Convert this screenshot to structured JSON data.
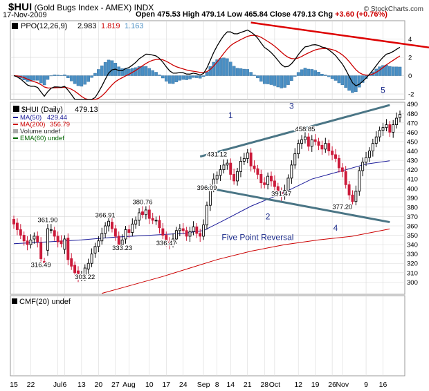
{
  "header": {
    "symbol": "$HUI",
    "name": "(Gold Bugs Index - AMEX)",
    "exchange": "INDX",
    "date": "17-Nov-2009",
    "open_label": "Open",
    "open": "475.53",
    "high_label": "High",
    "high": "479.14",
    "low_label": "Low",
    "low": "465.84",
    "close_label": "Close",
    "close": "479.13",
    "chg_label": "Chg",
    "chg": "+3.60 (+0.76%)",
    "credit": "© StockCharts.com"
  },
  "colors": {
    "up": "#000000",
    "down": "#cc1a3a",
    "ma50": "#1a1a99",
    "ma200": "#cc0000",
    "ppo_line": "#000000",
    "ppo_signal": "#cc0000",
    "ppo_hist": "#4a8fc4",
    "trend_blue": "#4a7585",
    "trend_red": "#dd0000",
    "grid": "#d8d8d8"
  },
  "chart_data": [
    {
      "type": "line",
      "panel": "PPO",
      "legend": {
        "label": "PPO(12,26,9)",
        "ppo": "2.983",
        "signal": "1.819",
        "hist": "1.163"
      },
      "ylim": [
        -2.6,
        6.0
      ],
      "yticks": [
        "4",
        "2",
        "0",
        "-2"
      ],
      "annotations": [
        {
          "text": "5",
          "i": 109,
          "y": -1.6
        }
      ],
      "trendline": {
        "from": {
          "i": 70,
          "y": 5.8
        },
        "to": {
          "i": 124,
          "y": 3.0
        }
      }
    },
    {
      "type": "candlestick",
      "panel": "price",
      "legend": {
        "symbol_label": "$HUI (Daily)",
        "symbol_value": "479.13",
        "ma50_label": "MA(50)",
        "ma50_value": "429.44",
        "ma200_label": "MA(200)",
        "ma200_value": "356.79",
        "volume_label": "Volume undef",
        "ema_label": "EMA(60) undef"
      },
      "ylim": [
        287,
        492
      ],
      "yticks": [
        "490",
        "480",
        "470",
        "460",
        "450",
        "440",
        "430",
        "420",
        "410",
        "400",
        "390",
        "380",
        "370",
        "360",
        "350",
        "340",
        "330",
        "320",
        "310",
        "300"
      ],
      "xtick_labels": [
        {
          "label": "15",
          "i": 0
        },
        {
          "label": "22",
          "i": 5
        },
        {
          "label": "Jul",
          "i": 13
        },
        {
          "label": "6",
          "i": 15
        },
        {
          "label": "13",
          "i": 20
        },
        {
          "label": "20",
          "i": 25
        },
        {
          "label": "27",
          "i": 30
        },
        {
          "label": "Aug",
          "i": 34
        },
        {
          "label": "10",
          "i": 40
        },
        {
          "label": "17",
          "i": 45
        },
        {
          "label": "24",
          "i": 50
        },
        {
          "label": "Sep",
          "i": 56
        },
        {
          "label": "8",
          "i": 60
        },
        {
          "label": "14",
          "i": 64
        },
        {
          "label": "21",
          "i": 69
        },
        {
          "label": "28",
          "i": 74
        },
        {
          "label": "Oct",
          "i": 77
        },
        {
          "label": "12",
          "i": 84
        },
        {
          "label": "19",
          "i": 89
        },
        {
          "label": "26",
          "i": 94
        },
        {
          "label": "Nov",
          "i": 97
        },
        {
          "label": "9",
          "i": 104
        },
        {
          "label": "16",
          "i": 109
        }
      ],
      "price_labels": [
        {
          "text": "361.90",
          "i": 10,
          "y": 362
        },
        {
          "text": "316.49",
          "i": 8,
          "y": 314
        },
        {
          "text": "303.22",
          "i": 21,
          "y": 301
        },
        {
          "text": "366.91",
          "i": 27,
          "y": 367
        },
        {
          "text": "333.23",
          "i": 32,
          "y": 332
        },
        {
          "text": "380.76",
          "i": 38,
          "y": 381
        },
        {
          "text": "336.47",
          "i": 45,
          "y": 337
        },
        {
          "text": "396.09",
          "i": 57,
          "y": 396
        },
        {
          "text": "431.12",
          "i": 60,
          "y": 432
        },
        {
          "text": "391.47",
          "i": 79,
          "y": 390
        },
        {
          "text": "458.85",
          "i": 86,
          "y": 459
        },
        {
          "text": "377.20",
          "i": 97,
          "y": 376
        }
      ],
      "point_labels": [
        {
          "text": "1",
          "i": 64,
          "y": 475
        },
        {
          "text": "2",
          "i": 75,
          "y": 367
        },
        {
          "text": "3",
          "i": 82,
          "y": 485
        },
        {
          "text": "4",
          "i": 95,
          "y": 355
        },
        {
          "text": "Five Point Reversal",
          "i": 72,
          "y": 345
        }
      ],
      "trendlines": [
        {
          "from": {
            "i": 55,
            "y": 434
          },
          "to": {
            "i": 111,
            "y": 489
          }
        },
        {
          "from": {
            "i": 55,
            "y": 402
          },
          "to": {
            "i": 111,
            "y": 364
          }
        }
      ],
      "candles": [
        {
          "o": 367,
          "c": 362
        },
        {
          "o": 363,
          "c": 356
        },
        {
          "o": 356,
          "c": 350
        },
        {
          "o": 350,
          "c": 344
        },
        {
          "o": 344,
          "c": 340
        },
        {
          "o": 340,
          "c": 345
        },
        {
          "o": 346,
          "c": 349
        },
        {
          "o": 349,
          "c": 343
        },
        {
          "o": 342,
          "c": 325
        },
        {
          "o": 322,
          "c": 321
        },
        {
          "o": 334,
          "c": 357
        },
        {
          "o": 356,
          "c": 356
        },
        {
          "o": 355,
          "c": 349
        },
        {
          "o": 349,
          "c": 343
        },
        {
          "o": 344,
          "c": 341
        },
        {
          "o": 335,
          "c": 346
        },
        {
          "o": 347,
          "c": 324
        },
        {
          "o": 325,
          "c": 317
        },
        {
          "o": 318,
          "c": 310
        },
        {
          "o": 312,
          "c": 306
        },
        {
          "o": 305,
          "c": 306
        },
        {
          "o": 306,
          "c": 315
        },
        {
          "o": 314,
          "c": 320
        },
        {
          "o": 320,
          "c": 330
        },
        {
          "o": 331,
          "c": 338
        },
        {
          "o": 338,
          "c": 344
        },
        {
          "o": 344,
          "c": 352
        },
        {
          "o": 352,
          "c": 360
        },
        {
          "o": 360,
          "c": 365
        },
        {
          "o": 364,
          "c": 357
        },
        {
          "o": 357,
          "c": 349
        },
        {
          "o": 349,
          "c": 340
        },
        {
          "o": 340,
          "c": 345
        },
        {
          "o": 346,
          "c": 356
        },
        {
          "o": 356,
          "c": 353
        },
        {
          "o": 353,
          "c": 362
        },
        {
          "o": 362,
          "c": 366
        },
        {
          "o": 366,
          "c": 374
        },
        {
          "o": 375,
          "c": 372
        },
        {
          "o": 372,
          "c": 377
        },
        {
          "o": 377,
          "c": 368
        },
        {
          "o": 368,
          "c": 366
        },
        {
          "o": 366,
          "c": 366
        },
        {
          "o": 366,
          "c": 358
        },
        {
          "o": 357,
          "c": 350
        },
        {
          "o": 350,
          "c": 343
        },
        {
          "o": 343,
          "c": 341
        },
        {
          "o": 341,
          "c": 346
        },
        {
          "o": 346,
          "c": 355
        },
        {
          "o": 355,
          "c": 357
        },
        {
          "o": 357,
          "c": 355
        },
        {
          "o": 355,
          "c": 349
        },
        {
          "o": 349,
          "c": 354
        },
        {
          "o": 354,
          "c": 359
        },
        {
          "o": 359,
          "c": 352
        },
        {
          "o": 352,
          "c": 349
        },
        {
          "o": 349,
          "c": 361
        },
        {
          "o": 361,
          "c": 382
        },
        {
          "o": 382,
          "c": 400
        },
        {
          "o": 400,
          "c": 410
        },
        {
          "o": 410,
          "c": 414
        },
        {
          "o": 414,
          "c": 420
        },
        {
          "o": 420,
          "c": 425
        },
        {
          "o": 425,
          "c": 427
        },
        {
          "o": 427,
          "c": 415
        },
        {
          "o": 415,
          "c": 408
        },
        {
          "o": 408,
          "c": 418
        },
        {
          "o": 418,
          "c": 429
        },
        {
          "o": 429,
          "c": 432
        },
        {
          "o": 432,
          "c": 438
        },
        {
          "o": 438,
          "c": 424
        },
        {
          "o": 424,
          "c": 421
        },
        {
          "o": 421,
          "c": 415
        },
        {
          "o": 415,
          "c": 406
        },
        {
          "o": 406,
          "c": 404
        },
        {
          "o": 404,
          "c": 413
        },
        {
          "o": 413,
          "c": 408
        },
        {
          "o": 408,
          "c": 402
        },
        {
          "o": 402,
          "c": 396
        },
        {
          "o": 396,
          "c": 392
        },
        {
          "o": 392,
          "c": 398
        },
        {
          "o": 398,
          "c": 411
        },
        {
          "o": 411,
          "c": 425
        },
        {
          "o": 425,
          "c": 437
        },
        {
          "o": 437,
          "c": 448
        },
        {
          "o": 448,
          "c": 452
        },
        {
          "o": 452,
          "c": 455
        },
        {
          "o": 455,
          "c": 445
        },
        {
          "o": 445,
          "c": 452
        },
        {
          "o": 452,
          "c": 450
        },
        {
          "o": 450,
          "c": 446
        },
        {
          "o": 446,
          "c": 442
        },
        {
          "o": 442,
          "c": 448
        },
        {
          "o": 448,
          "c": 440
        },
        {
          "o": 440,
          "c": 436
        },
        {
          "o": 436,
          "c": 432
        },
        {
          "o": 432,
          "c": 422
        },
        {
          "o": 422,
          "c": 418
        },
        {
          "o": 418,
          "c": 404
        },
        {
          "o": 404,
          "c": 393
        },
        {
          "o": 393,
          "c": 386
        },
        {
          "o": 386,
          "c": 397
        },
        {
          "o": 397,
          "c": 419
        },
        {
          "o": 419,
          "c": 428
        },
        {
          "o": 428,
          "c": 433
        },
        {
          "o": 433,
          "c": 440
        },
        {
          "o": 440,
          "c": 448
        },
        {
          "o": 448,
          "c": 455
        },
        {
          "o": 455,
          "c": 462
        },
        {
          "o": 462,
          "c": 465
        },
        {
          "o": 465,
          "c": 468
        },
        {
          "o": 468,
          "c": 460
        },
        {
          "o": 460,
          "c": 468
        },
        {
          "o": 468,
          "c": 475
        },
        {
          "o": 475.53,
          "c": 479.13
        }
      ],
      "ma50": [
        [
          0,
          341
        ],
        [
          10,
          343
        ],
        [
          20,
          345
        ],
        [
          30,
          348
        ],
        [
          40,
          350
        ],
        [
          50,
          352
        ],
        [
          56,
          355
        ],
        [
          62,
          366
        ],
        [
          70,
          381
        ],
        [
          80,
          396
        ],
        [
          88,
          410
        ],
        [
          96,
          418
        ],
        [
          104,
          426
        ],
        [
          111,
          429.44
        ]
      ],
      "ma200": [
        [
          26,
          288
        ],
        [
          34,
          296
        ],
        [
          44,
          306
        ],
        [
          52,
          315
        ],
        [
          60,
          324
        ],
        [
          70,
          333
        ],
        [
          80,
          340
        ],
        [
          90,
          345
        ],
        [
          100,
          349
        ],
        [
          111,
          356.79
        ]
      ]
    },
    {
      "type": "line",
      "panel": "CMF",
      "legend": {
        "label": "CMF(20) undef"
      }
    }
  ]
}
